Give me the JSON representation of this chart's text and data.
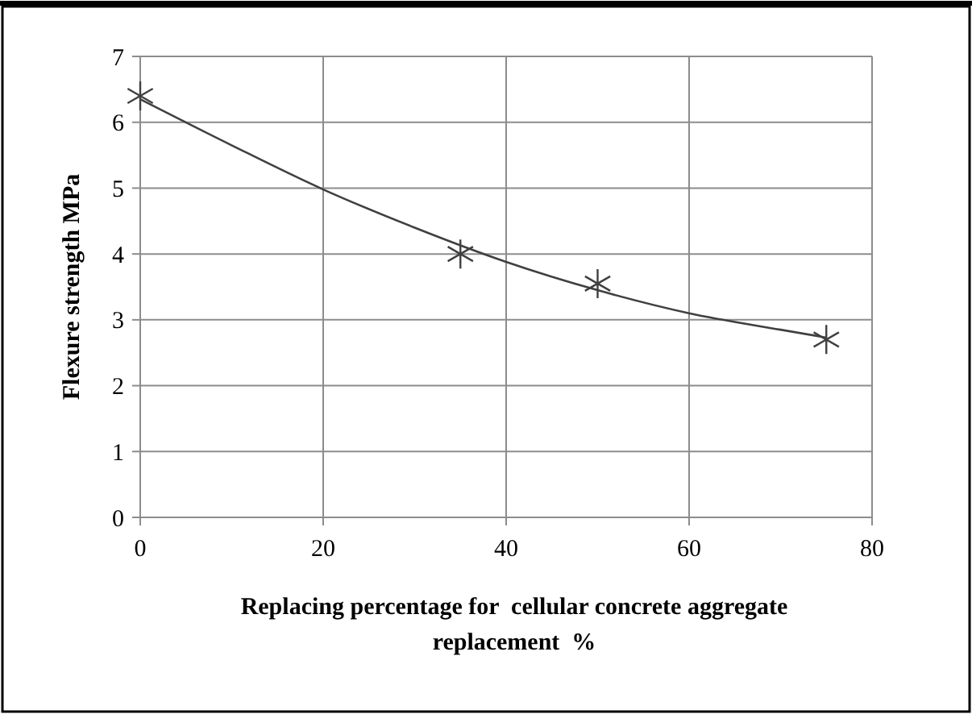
{
  "chart_data": {
    "type": "scatter",
    "xlabel": "Replacing percentage for  cellular concrete aggregate replacement  %",
    "ylabel": "Flexure strength MPa",
    "x": [
      0,
      35,
      50,
      75
    ],
    "xlim": [
      0,
      80
    ],
    "xticks": [
      0,
      20,
      40,
      60,
      80
    ],
    "ylim": [
      0,
      7
    ],
    "yticks": [
      0,
      1,
      2,
      3,
      4,
      5,
      6,
      7
    ],
    "grid": true,
    "marker": "cross",
    "series": [
      {
        "color": "#404040",
        "values": [
          6.4,
          4.0,
          3.55,
          2.7
        ]
      },
      {
        "type": "line",
        "color": "#404040",
        "x": [
          0,
          10,
          20,
          30,
          40,
          50,
          60,
          70,
          75
        ],
        "values": [
          6.35,
          5.65,
          4.98,
          4.4,
          3.88,
          3.45,
          3.1,
          2.85,
          2.73
        ],
        "marker": "none",
        "line_style": "solid"
      }
    ]
  }
}
